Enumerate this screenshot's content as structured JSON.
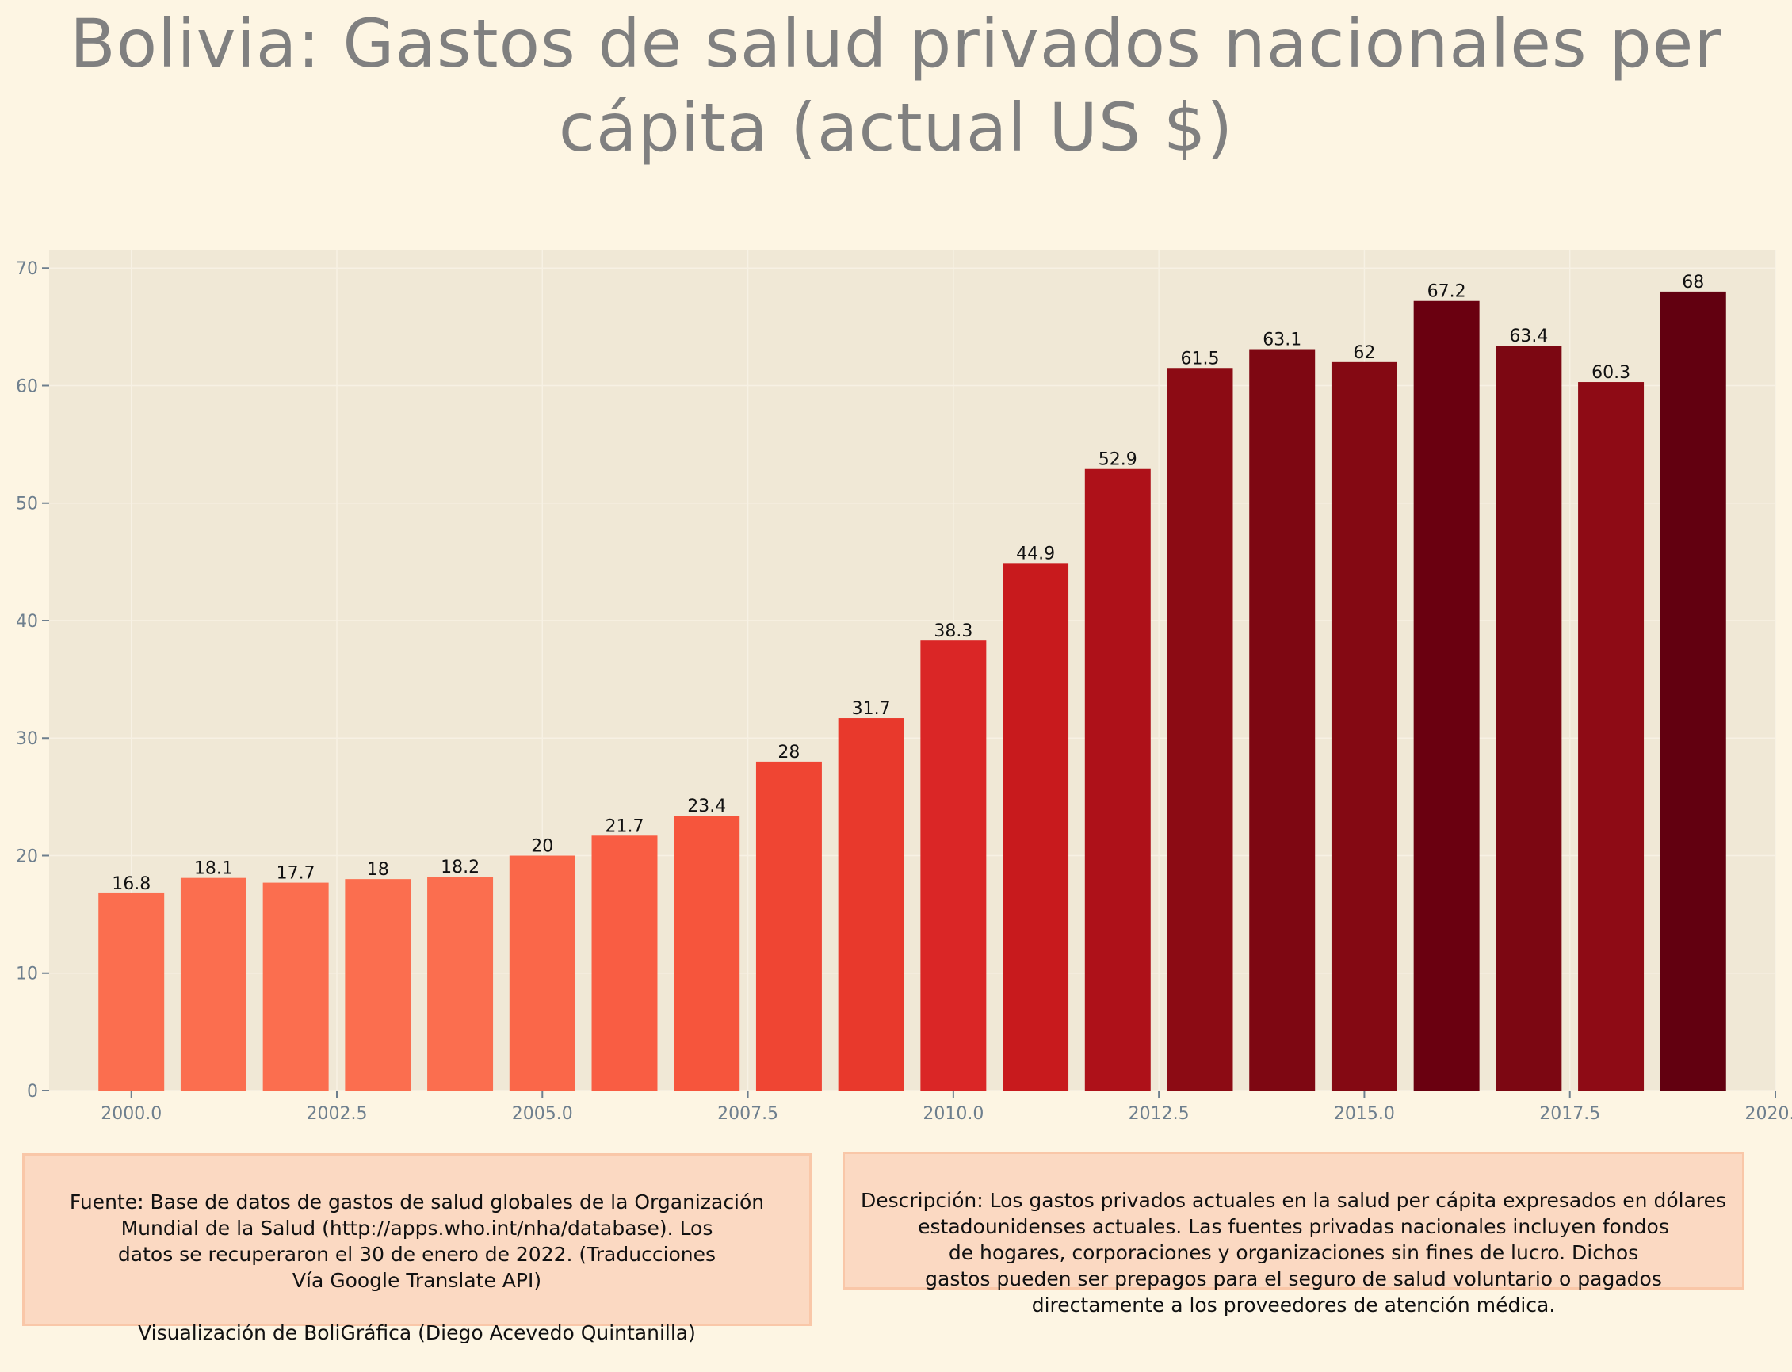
{
  "title": "Bolivia:  Gastos de salud privados nacionales per cápita (actual US $)",
  "colors": {
    "background": "#fdf5e3",
    "plot_background": "#f0e8d6",
    "title": "#808080",
    "axis_text": "#6e7f8e",
    "note_background": "#fbd9c2",
    "note_border": "#f9c7a8"
  },
  "chart_data": {
    "type": "bar",
    "title": "Bolivia:  Gastos de salud privados nacionales per cápita (actual US $)",
    "xlabel": "",
    "ylabel": "",
    "x": [
      2000,
      2001,
      2002,
      2003,
      2004,
      2005,
      2006,
      2007,
      2008,
      2009,
      2010,
      2011,
      2012,
      2013,
      2014,
      2015,
      2016,
      2017,
      2018,
      2019
    ],
    "values": [
      16.8,
      18.1,
      17.7,
      18,
      18.2,
      20,
      21.7,
      23.4,
      28,
      31.7,
      38.3,
      44.9,
      52.9,
      61.5,
      63.1,
      62,
      67.2,
      63.4,
      60.3,
      68
    ],
    "labels": [
      "16.8",
      "18.1",
      "17.7",
      "18",
      "18.2",
      "20",
      "21.7",
      "23.4",
      "28",
      "31.7",
      "38.3",
      "44.9",
      "52.9",
      "61.5",
      "63.1",
      "62",
      "67.2",
      "63.4",
      "60.3",
      "68"
    ],
    "colors": [
      "#fb6e4f",
      "#fb6e4f",
      "#fb6e4f",
      "#fb6e4f",
      "#fb6e4f",
      "#fa6749",
      "#f95d43",
      "#f6553c",
      "#ef4533",
      "#e8392c",
      "#da2626",
      "#c81a1d",
      "#ae1119",
      "#8c0b14",
      "#7e0712",
      "#840913",
      "#6a0010",
      "#7c0712",
      "#8e0b15",
      "#620010"
    ],
    "xlim": [
      1999,
      2020
    ],
    "ylim": [
      0,
      71.5
    ],
    "xticks": [
      2000.0,
      2002.5,
      2005.0,
      2007.5,
      2010.0,
      2012.5,
      2015.0,
      2017.5,
      2020.0
    ],
    "xtick_labels": [
      "2000.0",
      "2002.5",
      "2005.0",
      "2007.5",
      "2010.0",
      "2012.5",
      "2015.0",
      "2017.5",
      "2020.0"
    ],
    "yticks": [
      0,
      10,
      20,
      30,
      40,
      50,
      60,
      70
    ],
    "ytick_labels": [
      "0",
      "10",
      "20",
      "30",
      "40",
      "50",
      "60",
      "70"
    ],
    "grid": true,
    "legend": "none"
  },
  "notes": {
    "source": "Fuente: Base de datos de gastos de salud globales de la Organización\nMundial de la Salud (http://apps.who.int/nha/database). Los\ndatos se recuperaron el 30 de enero de 2022. (Traducciones\nVía Google Translate API)",
    "credit": "Visualización de BoliGráfica (Diego Acevedo Quintanilla)",
    "description": "Descripción: Los gastos privados actuales en la salud per cápita expresados en dólares\nestadounidenses actuales. Las fuentes privadas nacionales incluyen fondos\nde hogares, corporaciones y organizaciones sin fines de lucro. Dichos\ngastos pueden ser prepagos para el seguro de salud voluntario o pagados\ndirectamente a los proveedores de atención médica."
  }
}
